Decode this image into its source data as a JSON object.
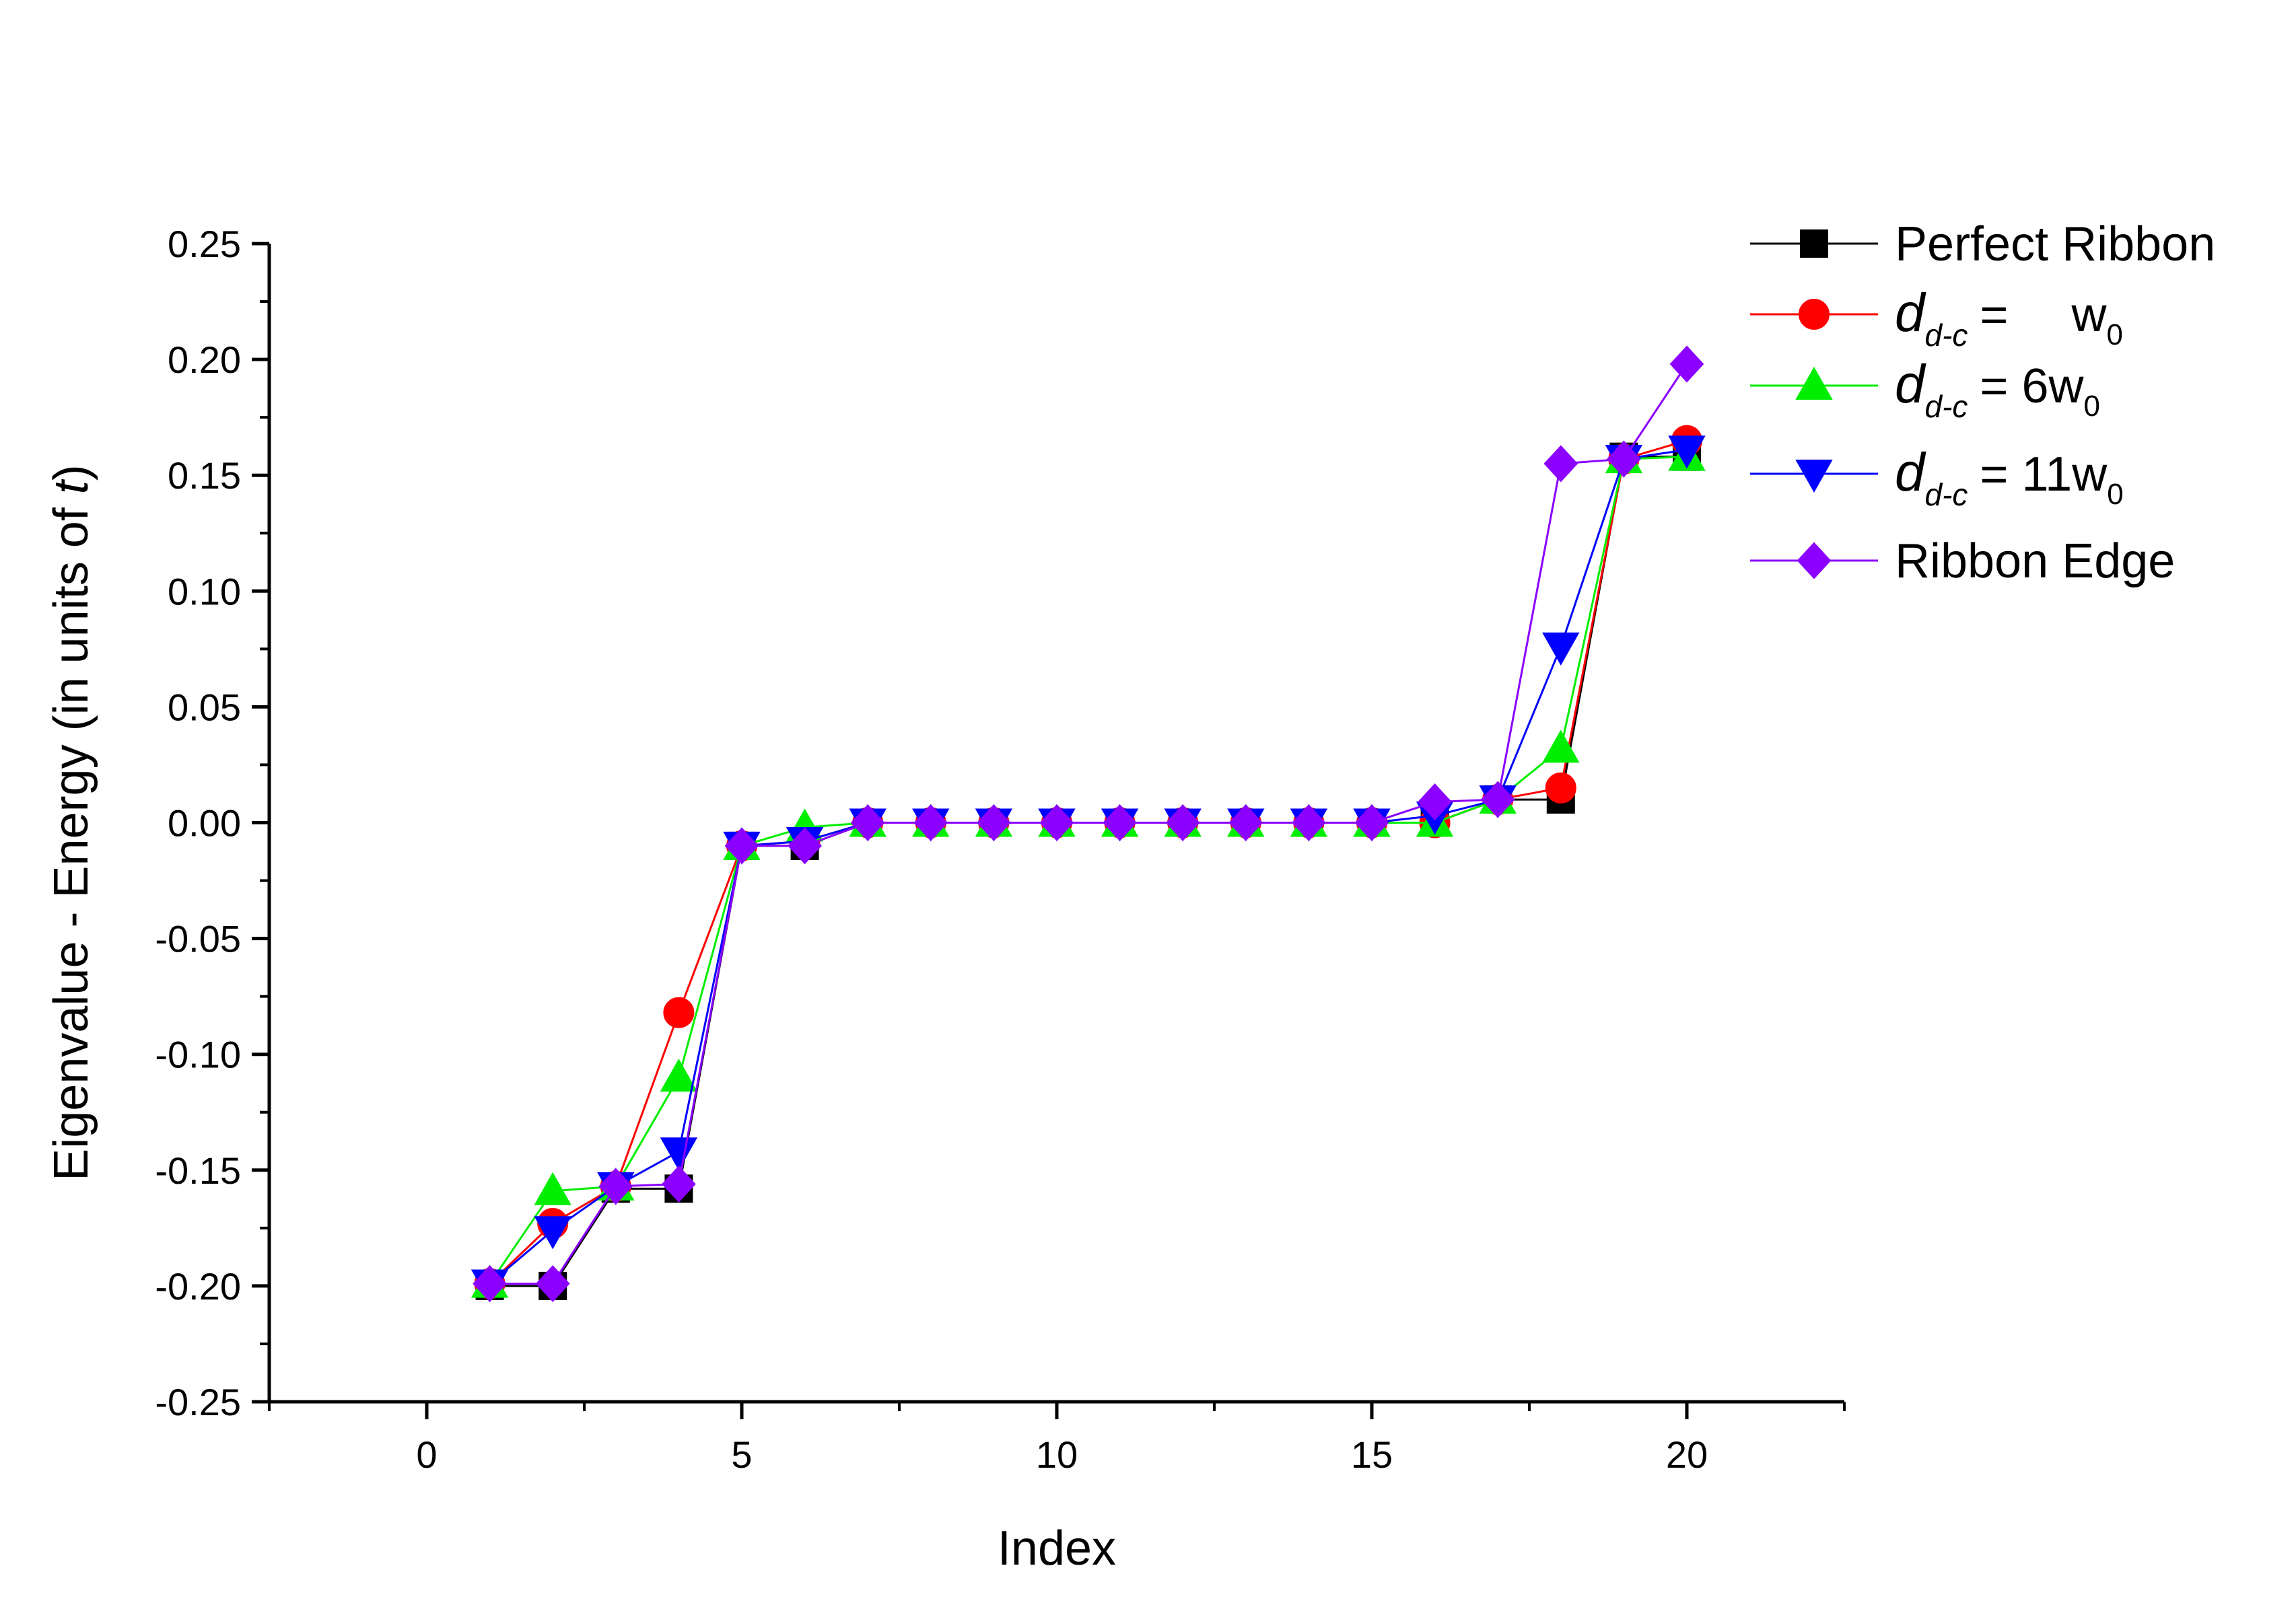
{
  "chart_data": {
    "type": "line",
    "xlabel": "Index",
    "ylabel_prefix": "Eigenvalue - Energy (in units of ",
    "ylabel_italic": "t",
    "ylabel_suffix": ")",
    "xlim": [
      -2.5,
      22.5
    ],
    "ylim": [
      -0.25,
      0.25
    ],
    "x_ticks": [
      0,
      5,
      10,
      15,
      20
    ],
    "x_tick_labels": [
      "0",
      "5",
      "10",
      "15",
      "20"
    ],
    "y_ticks": [
      -0.25,
      -0.2,
      -0.15,
      -0.1,
      -0.05,
      0.0,
      0.05,
      0.1,
      0.15,
      0.2,
      0.25
    ],
    "y_tick_labels": [
      "-0.25",
      "-0.20",
      "-0.15",
      "-0.10",
      "-0.05",
      "0.00",
      "0.05",
      "0.10",
      "0.15",
      "0.20",
      "0.25"
    ],
    "grid": false,
    "legend_position": "top-right",
    "x": [
      1,
      2,
      3,
      4,
      5,
      6,
      7,
      8,
      9,
      10,
      11,
      12,
      13,
      14,
      15,
      16,
      17,
      18,
      19,
      20
    ],
    "series": [
      {
        "name": "Perfect Ribbon",
        "color": "#000000",
        "marker": "square",
        "values": [
          -0.2,
          -0.2,
          -0.158,
          -0.158,
          -0.01,
          -0.01,
          0.0,
          0.0,
          0.0,
          0.0,
          0.0,
          0.0,
          0.0,
          0.0,
          0.0,
          0.0,
          0.01,
          0.01,
          0.158,
          0.158
        ]
      },
      {
        "name": "d_{d-c} = w_0",
        "legend_var": "d",
        "legend_sub": "d-c",
        "legend_eq": "=",
        "legend_coef": "",
        "legend_w": "w",
        "legend_wsub": "0",
        "color": "#ff0000",
        "marker": "circle",
        "values": [
          -0.199,
          -0.173,
          -0.157,
          -0.082,
          -0.01,
          -0.008,
          0.0,
          0.0,
          0.0,
          0.0,
          0.0,
          0.0,
          0.0,
          0.0,
          0.0,
          0.0,
          0.01,
          0.015,
          0.157,
          0.165
        ]
      },
      {
        "name": "d_{d-c} = 6w_0",
        "legend_var": "d",
        "legend_sub": "d-c",
        "legend_eq": "=",
        "legend_coef": "6",
        "legend_w": "w",
        "legend_wsub": "0",
        "color": "#00ee00",
        "marker": "triangle-up",
        "values": [
          -0.199,
          -0.159,
          -0.157,
          -0.11,
          -0.01,
          -0.002,
          0.0,
          0.0,
          0.0,
          0.0,
          0.0,
          0.0,
          0.0,
          0.0,
          0.0,
          0.0,
          0.01,
          0.032,
          0.157,
          0.158
        ]
      },
      {
        "name": "d_{d-c} = 11w_0",
        "legend_var": "d",
        "legend_sub": "d-c",
        "legend_eq": "=",
        "legend_coef": "11",
        "legend_w": "w",
        "legend_wsub": "0",
        "color": "#0000ff",
        "marker": "triangle-down",
        "values": [
          -0.199,
          -0.176,
          -0.157,
          -0.142,
          -0.01,
          -0.008,
          0.0,
          0.0,
          0.0,
          0.0,
          0.0,
          0.0,
          0.0,
          0.0,
          0.0,
          0.003,
          0.01,
          0.076,
          0.157,
          0.161
        ]
      },
      {
        "name": "Ribbon Edge",
        "color": "#8b00ff",
        "marker": "diamond",
        "values": [
          -0.199,
          -0.199,
          -0.157,
          -0.156,
          -0.01,
          -0.01,
          0.0,
          0.0,
          0.0,
          0.0,
          0.0,
          0.0,
          0.0,
          0.0,
          0.0,
          0.009,
          0.01,
          0.155,
          0.157,
          0.198
        ]
      }
    ]
  }
}
